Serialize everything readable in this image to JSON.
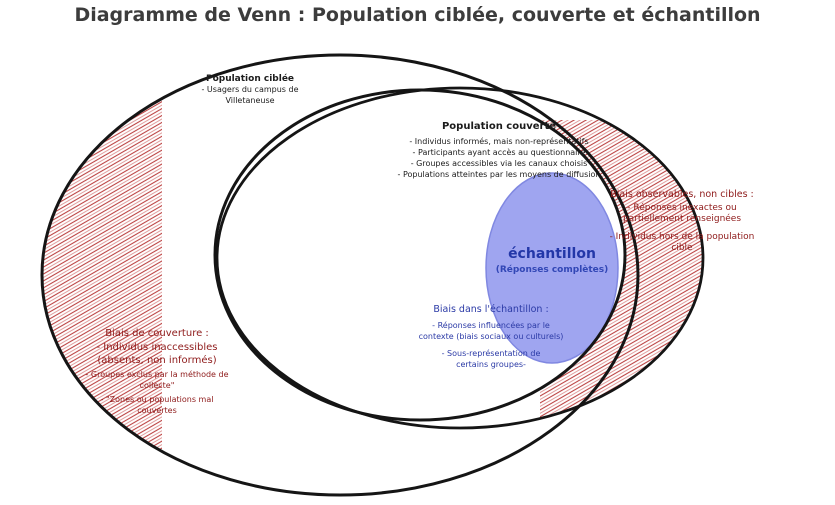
{
  "title": "Diagramme de Venn : Population ciblée, couverte et échantillon",
  "colors": {
    "hatch": "#a52020",
    "sample_fill": "#9aa1f0",
    "sample_stroke": "#7a82e0",
    "outline": "#151515",
    "red_text": "#8e1a1a",
    "blue_text": "#2b3aa6"
  },
  "population_ciblee": {
    "heading": "Population ciblée",
    "lines": [
      "- Usagers du campus de",
      "Villetaneuse"
    ]
  },
  "population_couverte": {
    "heading": "Population couverte",
    "lines": [
      "- Individus informés, mais non-représentatifs",
      "- Participants ayant accès au questionnaire",
      "- Groupes accessibles via les canaux choisis",
      "- Populations atteintes par les moyens de diffusion"
    ]
  },
  "echantillon": {
    "label": "échantillon",
    "sublabel": "(Réponses complètes)"
  },
  "biais_observables": {
    "heading": "Biais observables, non cibles :",
    "lines": [
      "- Réponses inexactes ou",
      "partiellement renseignées",
      "- Individus hors de la population",
      "cible"
    ]
  },
  "biais_echantillon": {
    "heading": "Biais dans l'échantillon :",
    "lines": [
      "- Réponses influencées par le",
      "contexte (biais sociaux ou culturels)",
      "- Sous-représentation de",
      "certains groupes-"
    ]
  },
  "biais_couverture": {
    "heading": "Biais de couverture :",
    "lines": [
      "- Individus inaccessibles",
      "(absents, non informés)",
      "- Groupes exclus par la méthode de",
      "collecte\"",
      "- \"Zones ou populations mal",
      "couvertes"
    ]
  }
}
